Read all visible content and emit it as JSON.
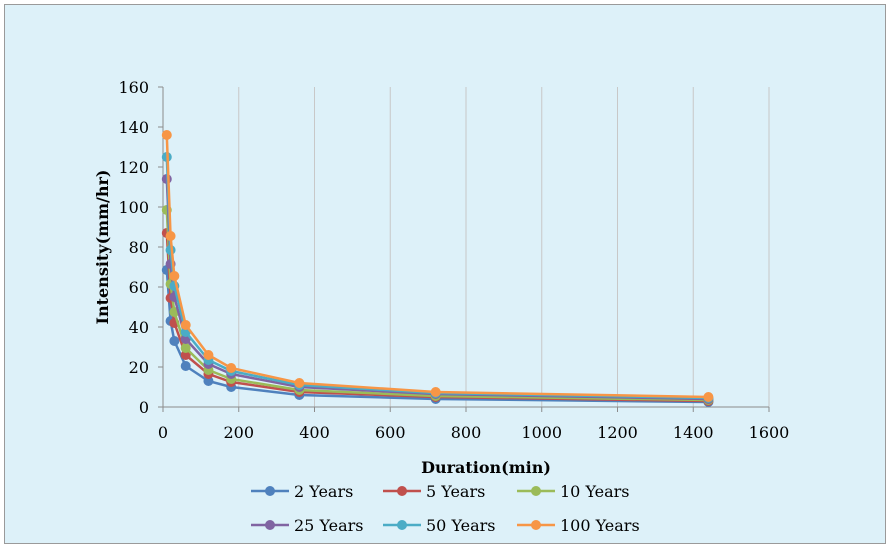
{
  "chart_data": {
    "type": "line",
    "title": "",
    "xlabel": "Duration(min)",
    "ylabel": "Intensity(mm/hr)",
    "xlim": [
      0,
      1600
    ],
    "ylim": [
      0,
      160
    ],
    "xticks": [
      0,
      200,
      400,
      600,
      800,
      1000,
      1200,
      1400,
      1600
    ],
    "yticks": [
      0,
      20,
      40,
      60,
      80,
      100,
      120,
      140,
      160
    ],
    "grid": "vertical",
    "legend_position": "bottom",
    "x": [
      10,
      20,
      30,
      60,
      120,
      180,
      360,
      720,
      1440
    ],
    "series": [
      {
        "name": "2 Years",
        "color": "#4f81bd",
        "values": [
          68.5,
          43.0,
          33.0,
          20.5,
          13.0,
          10.0,
          6.0,
          4.0,
          2.5
        ]
      },
      {
        "name": "5 Years",
        "color": "#c0504d",
        "values": [
          87.0,
          54.5,
          42.0,
          26.0,
          16.5,
          12.5,
          7.5,
          5.0,
          3.0
        ]
      },
      {
        "name": "10 Years",
        "color": "#9bbb59",
        "values": [
          98.5,
          61.5,
          47.5,
          29.5,
          18.5,
          14.0,
          8.5,
          5.5,
          3.5
        ]
      },
      {
        "name": "25 Years",
        "color": "#8064a2",
        "values": [
          114.0,
          71.5,
          55.0,
          34.0,
          21.5,
          16.5,
          10.0,
          6.5,
          4.0
        ]
      },
      {
        "name": "50 Years",
        "color": "#4bacc6",
        "values": [
          125.0,
          78.5,
          60.5,
          37.5,
          23.5,
          18.0,
          11.0,
          7.0,
          4.5
        ]
      },
      {
        "name": "100 Years",
        "color": "#f79646",
        "values": [
          136.0,
          85.5,
          65.5,
          41.0,
          26.0,
          19.5,
          12.0,
          7.5,
          5.0
        ]
      }
    ]
  }
}
